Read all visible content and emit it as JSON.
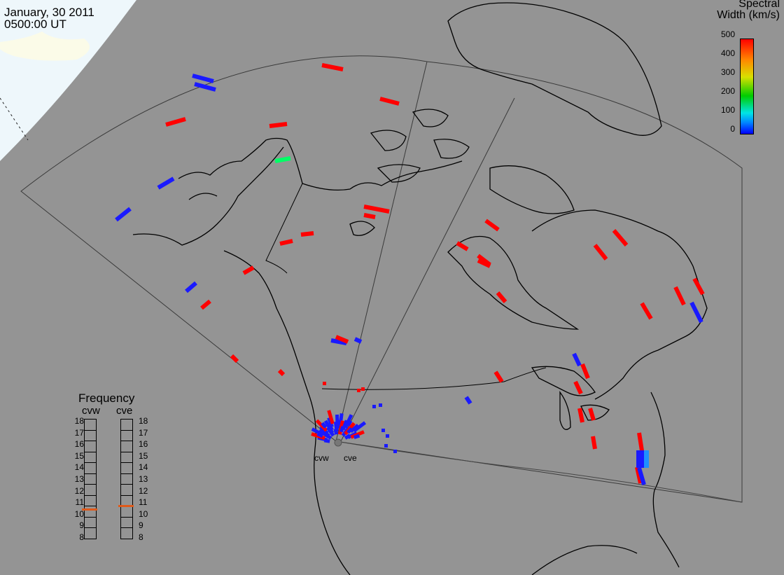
{
  "header": {
    "date": "January, 30 2011",
    "time": "0500:00 UT"
  },
  "colorbar": {
    "title_line1": "Spectral",
    "title_line2": "Width (km/s)",
    "ticks": [
      "500",
      "400",
      "300",
      "200",
      "100",
      "0"
    ]
  },
  "frequency_panel": {
    "title": "Frequency",
    "radars": [
      {
        "name": "cvw",
        "selected_mhz": 10.6
      },
      {
        "name": "cve",
        "selected_mhz": 10.9
      }
    ],
    "scale": [
      "18",
      "17",
      "16",
      "15",
      "14",
      "13",
      "12",
      "11",
      "10",
      "9",
      "8"
    ]
  },
  "sites": [
    {
      "name": "cvw"
    },
    {
      "name": "cve"
    }
  ],
  "colors": {
    "background": "#949494",
    "high_width": "#ff0000",
    "low_width": "#1a1aff",
    "mid_width": "#00ff66",
    "frequency_marker": "#e05a1a"
  }
}
